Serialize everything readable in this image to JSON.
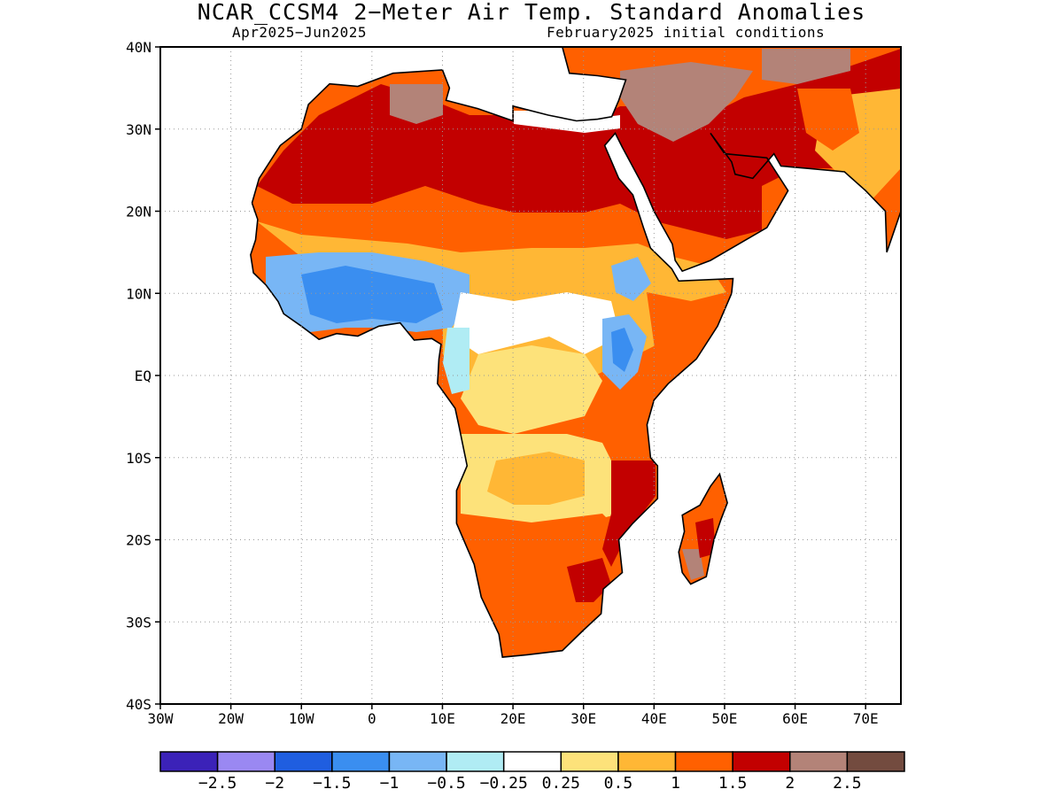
{
  "title": "NCAR_CCSM4 2−Meter Air Temp. Standard Anomalies",
  "subtitle_left": "Apr2025−Jun2025",
  "subtitle_right": "February2025 initial conditions",
  "map": {
    "lon_range": [
      -30,
      75
    ],
    "lat_range": [
      -40,
      40
    ],
    "lat_ticks": [
      {
        "v": 40,
        "label": "40N"
      },
      {
        "v": 30,
        "label": "30N"
      },
      {
        "v": 20,
        "label": "20N"
      },
      {
        "v": 10,
        "label": "10N"
      },
      {
        "v": 0,
        "label": "EQ"
      },
      {
        "v": -10,
        "label": "10S"
      },
      {
        "v": -20,
        "label": "20S"
      },
      {
        "v": -30,
        "label": "30S"
      },
      {
        "v": -40,
        "label": "40S"
      }
    ],
    "lon_ticks": [
      {
        "v": -30,
        "label": "30W"
      },
      {
        "v": -20,
        "label": "20W"
      },
      {
        "v": -10,
        "label": "10W"
      },
      {
        "v": 0,
        "label": "0"
      },
      {
        "v": 10,
        "label": "10E"
      },
      {
        "v": 20,
        "label": "20E"
      },
      {
        "v": 30,
        "label": "30E"
      },
      {
        "v": 40,
        "label": "40E"
      },
      {
        "v": 50,
        "label": "50E"
      },
      {
        "v": 60,
        "label": "60E"
      },
      {
        "v": 70,
        "label": "70E"
      }
    ],
    "grid": true
  },
  "colorbar": {
    "colors": [
      "#3b22b8",
      "#9a88f2",
      "#1f5ee0",
      "#3a8ef0",
      "#78b6f5",
      "#b0ecf4",
      "#ffffff",
      "#fde27a",
      "#ffb735",
      "#ff6000",
      "#c20000",
      "#b38378",
      "#734b3f"
    ],
    "labels": [
      "−2.5",
      "−2",
      "−1.5",
      "−1",
      "−0.5",
      "−0.25",
      "0.25",
      "0.5",
      "1",
      "1.5",
      "2",
      "2.5"
    ]
  }
}
